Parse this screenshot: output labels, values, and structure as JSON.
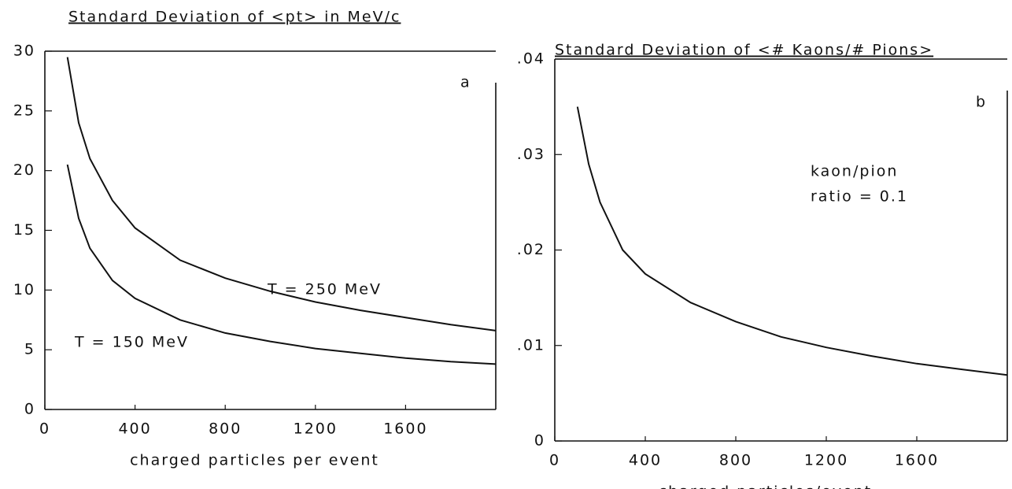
{
  "chart_data": [
    {
      "type": "line",
      "title": "Standard Deviation of <pt> in MeV/c",
      "xlabel": "charged particles per event",
      "x": [
        100,
        150,
        200,
        300,
        400,
        600,
        800,
        1000,
        1200,
        1400,
        1600,
        1800,
        2000
      ],
      "series": [
        {
          "name": "T = 250 MeV",
          "color": "#111111",
          "values": [
            29.5,
            24,
            21,
            17.5,
            15.2,
            12.5,
            11,
            9.9,
            9.0,
            8.3,
            7.7,
            7.1,
            6.6
          ]
        },
        {
          "name": "T = 150 MeV",
          "color": "#111111",
          "values": [
            20.5,
            16,
            13.5,
            10.8,
            9.3,
            7.5,
            6.4,
            5.7,
            5.1,
            4.7,
            4.3,
            4.0,
            3.8
          ]
        }
      ],
      "annotations": [
        "a"
      ],
      "xlim": [
        0,
        2000
      ],
      "xticks": [
        0,
        400,
        800,
        1200,
        1600
      ],
      "ylim": [
        0,
        30
      ],
      "yticks": [
        0,
        5,
        10,
        15,
        20,
        25,
        30
      ]
    },
    {
      "type": "line",
      "title": "Standard Deviation of <# Kaons/# Pions>",
      "xlabel": "charged particles/event",
      "x": [
        100,
        150,
        200,
        300,
        400,
        600,
        800,
        1000,
        1200,
        1400,
        1600,
        1800,
        2000
      ],
      "series": [
        {
          "name": "kaon/pion",
          "color": "#111111",
          "values": [
            0.035,
            0.029,
            0.025,
            0.02,
            0.0175,
            0.0145,
            0.0125,
            0.0109,
            0.0098,
            0.0089,
            0.0081,
            0.0075,
            0.0069
          ]
        }
      ],
      "annotations": [
        "b",
        "ratio = 0.1"
      ],
      "xlim": [
        0,
        2000
      ],
      "xticks": [
        0,
        400,
        800,
        1200,
        1600
      ],
      "ylim": [
        0,
        0.04
      ],
      "yticks": [
        0,
        {
          "value": 0.01,
          "label": ".01"
        },
        {
          "value": 0.02,
          "label": ".02"
        },
        {
          "value": 0.03,
          "label": ".03"
        },
        {
          "value": 0.04,
          "label": ".04"
        }
      ]
    }
  ]
}
